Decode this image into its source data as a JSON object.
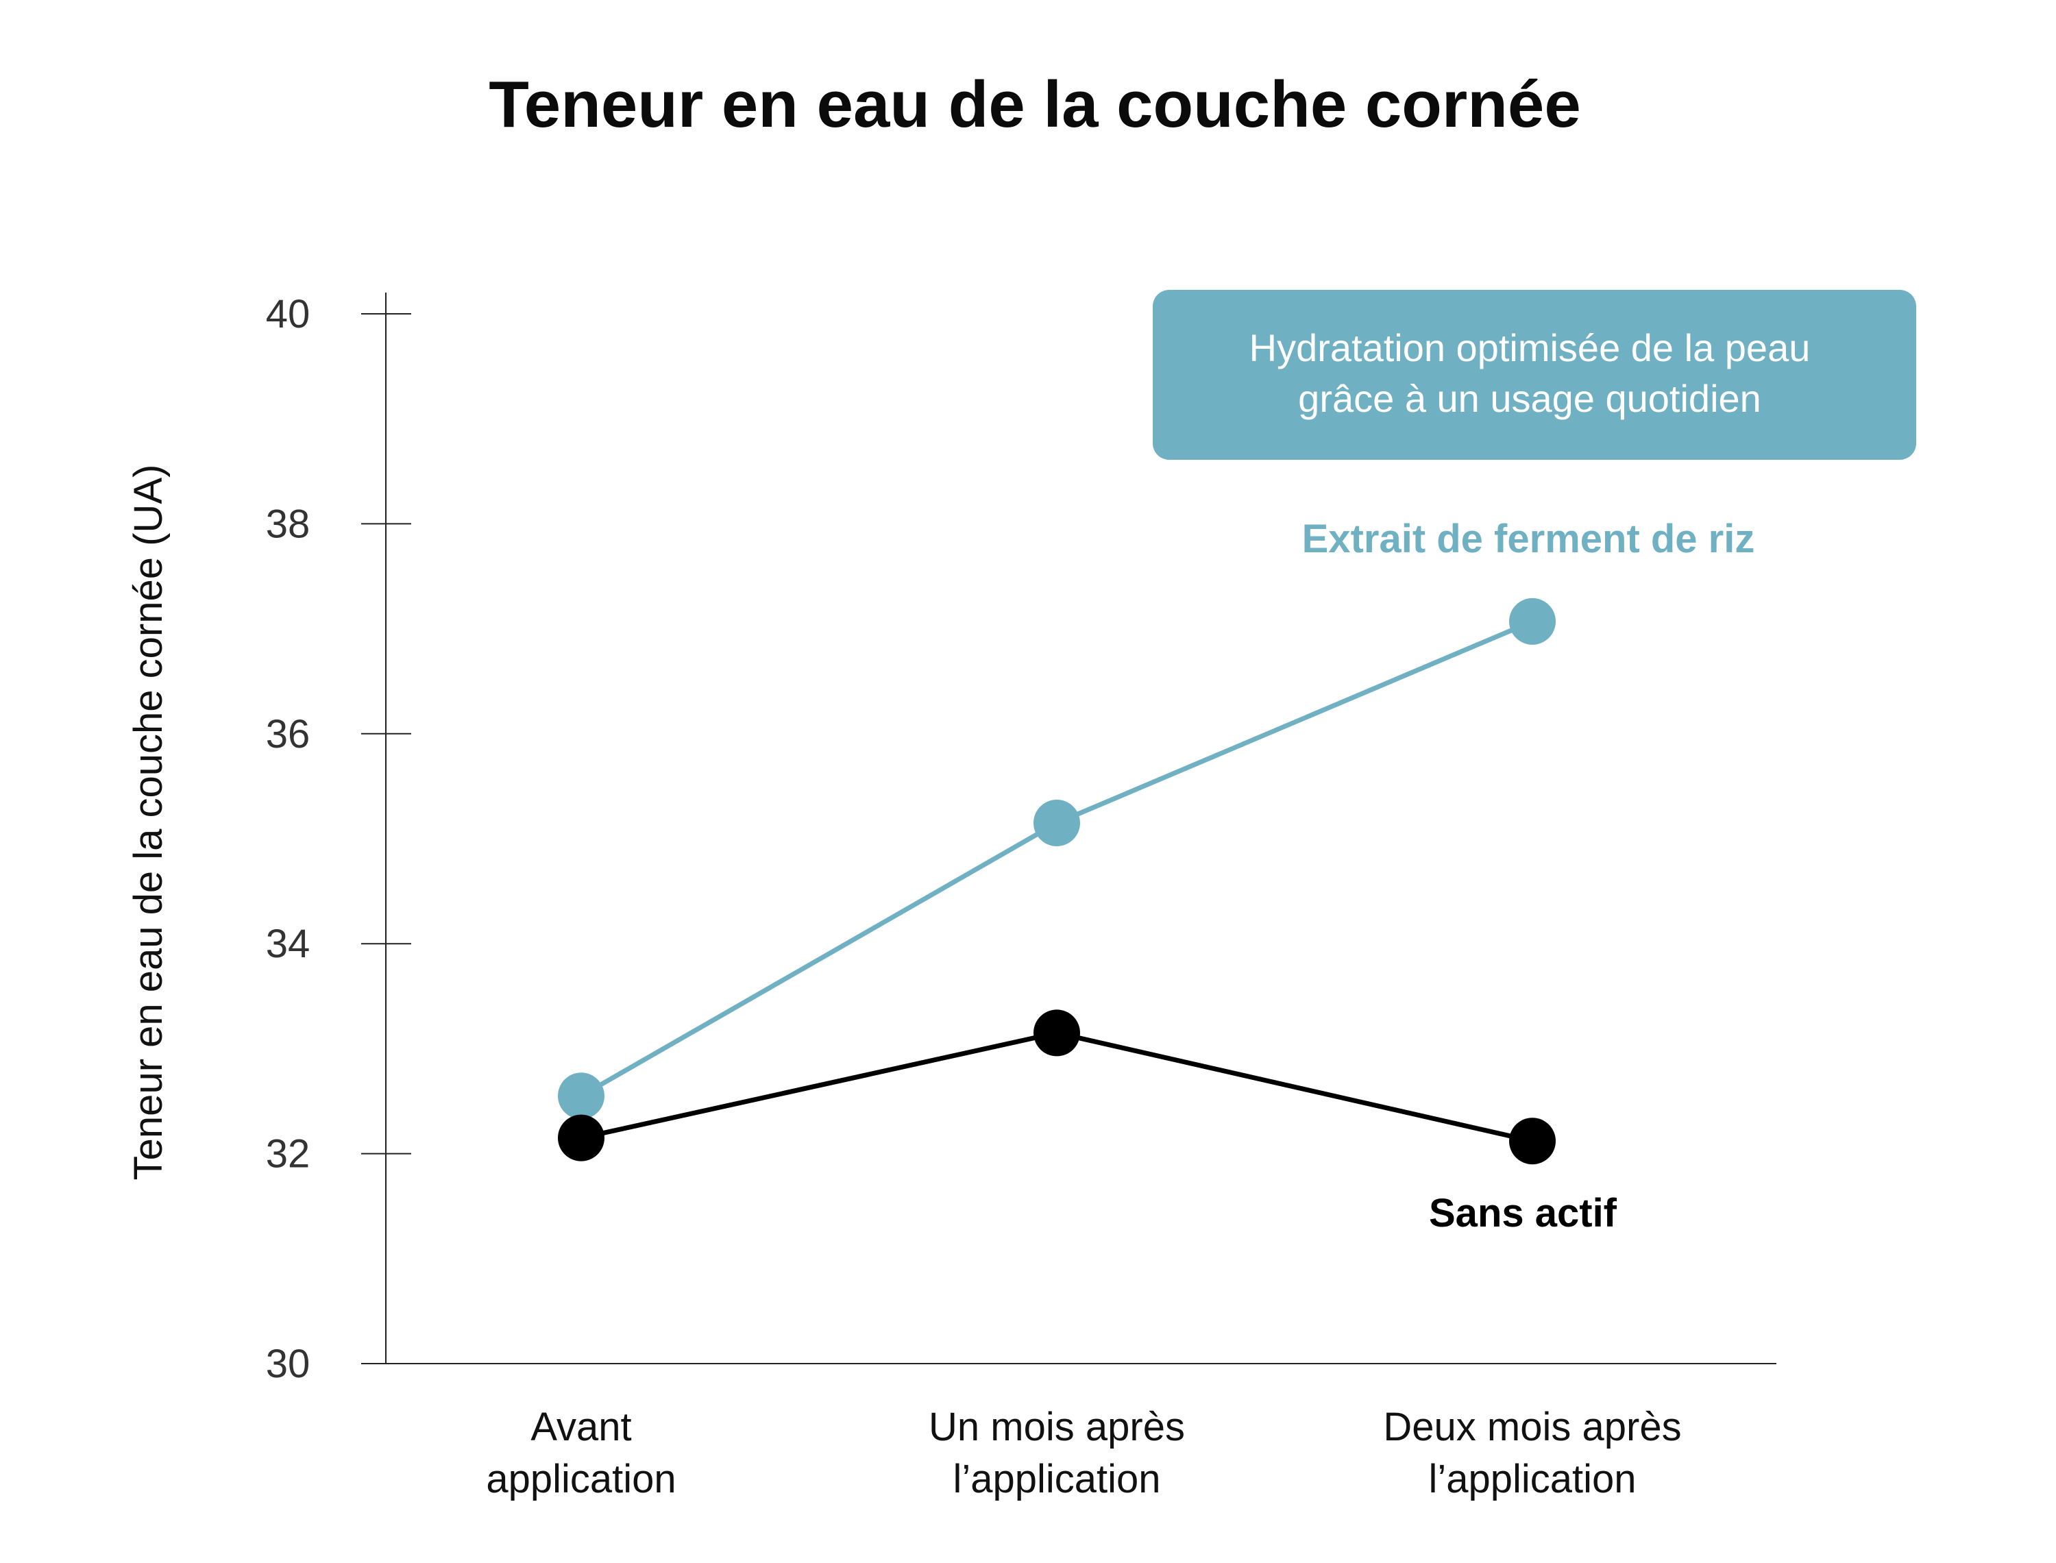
{
  "chart_data": {
    "type": "line",
    "title": "Teneur en eau de la couche cornée",
    "ylabel": "Teneur en eau de la couche cornée (UA)",
    "xlabel": "",
    "ylim": [
      30,
      40
    ],
    "yticks": [
      30,
      32,
      34,
      36,
      38,
      40
    ],
    "categories": [
      [
        "Avant",
        "application"
      ],
      [
        "Un mois après",
        "l’application"
      ],
      [
        "Deux mois après",
        "l’application"
      ]
    ],
    "series": [
      {
        "name": "Extrait de ferment de riz",
        "color": "#6fb1c3",
        "values": [
          32.55,
          35.15,
          37.07
        ]
      },
      {
        "name": "Sans actif",
        "color": "#000000",
        "values": [
          32.15,
          33.15,
          32.12
        ]
      }
    ],
    "annotation": [
      "Hydratation optimisée de la peau",
      "grâce à un usage quotidien"
    ],
    "annotation_color": "#6fb1c3",
    "grid": false
  }
}
